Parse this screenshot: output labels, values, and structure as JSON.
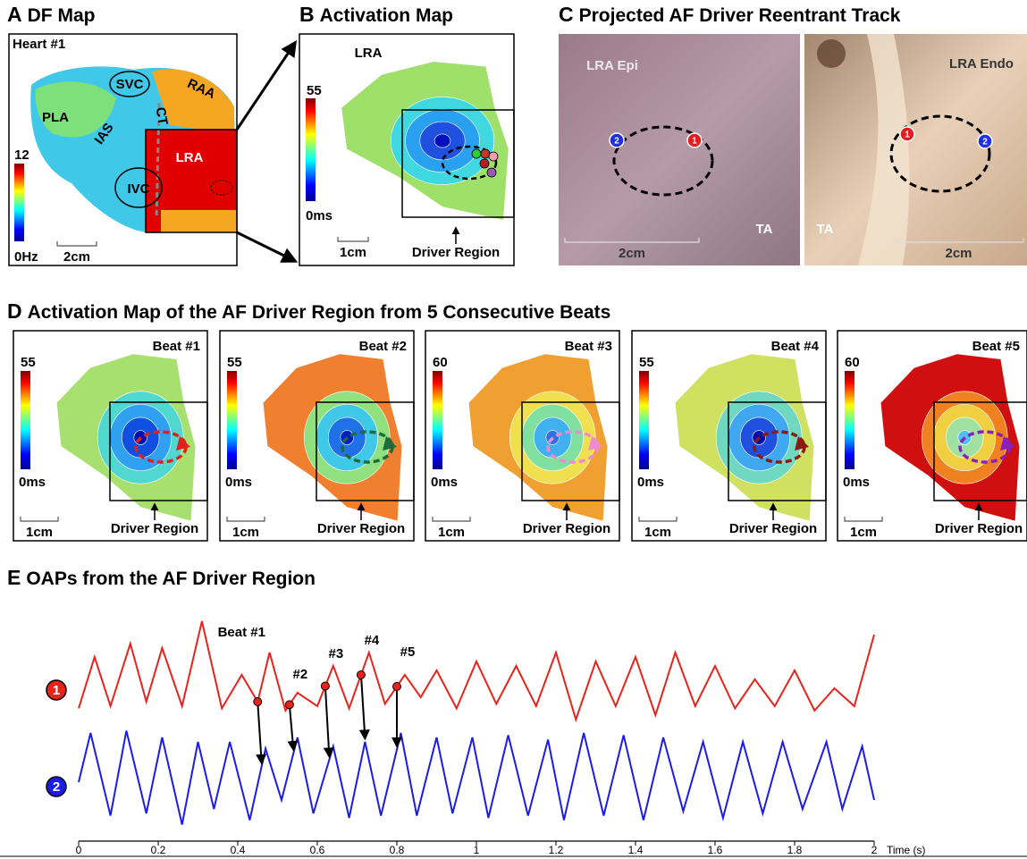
{
  "panels": {
    "A": {
      "letter": "A",
      "title": "DF Map",
      "heart": "Heart #1",
      "labels": {
        "svc": "SVC",
        "raa": "RAA",
        "pla": "PLA",
        "ias": "IAS",
        "ct": "CT",
        "lra": "LRA",
        "ivc": "IVC"
      },
      "scale_max": "12",
      "scale_min": "0Hz",
      "scalebar": "2cm"
    },
    "B": {
      "letter": "B",
      "title": "Activation Map",
      "region": "LRA",
      "scale_max": "55",
      "scale_min": "0ms",
      "scalebar": "1cm",
      "driver": "Driver Region"
    },
    "C": {
      "letter": "C",
      "title": "Projected AF Driver Reentrant Track",
      "epi": "LRA Epi",
      "endo": "LRA Endo",
      "ta_epi": "TA",
      "ta_endo": "TA",
      "scalebar_epi": "2cm",
      "scalebar_endo": "2cm",
      "point1": "1",
      "point2": "2"
    },
    "D": {
      "letter": "D",
      "title": "Activation Map of the AF Driver Region from 5 Consecutive Beats",
      "beats": [
        {
          "label": "Beat #1",
          "scale_max": "55",
          "scale_min": "0ms",
          "scalebar": "1cm",
          "driver": "Driver Region",
          "track_color": "#e0201a"
        },
        {
          "label": "Beat #2",
          "scale_max": "55",
          "scale_min": "0ms",
          "scalebar": "1cm",
          "driver": "Driver Region",
          "track_color": "#1f6b3a"
        },
        {
          "label": "Beat #3",
          "scale_max": "60",
          "scale_min": "0ms",
          "scalebar": "1cm",
          "driver": "Driver Region",
          "track_color": "#f08ad0"
        },
        {
          "label": "Beat #4",
          "scale_max": "55",
          "scale_min": "0ms",
          "scalebar": "1cm",
          "driver": "Driver Region",
          "track_color": "#8b1a10"
        },
        {
          "label": "Beat #5",
          "scale_max": "60",
          "scale_min": "0ms",
          "scalebar": "1cm",
          "driver": "Driver Region",
          "track_color": "#8a1fc0"
        }
      ]
    },
    "E": {
      "letter": "E",
      "title": "OAPs from the AF Driver Region",
      "xlabel": "Time (s)",
      "xlim": [
        0,
        2
      ],
      "xticks": [
        0,
        0.2,
        0.4,
        0.6,
        0.8,
        1,
        1.2,
        1.4,
        1.6,
        1.8,
        2
      ],
      "traces": [
        {
          "name": "1",
          "color": "#e8231c",
          "x": [
            0,
            0.04,
            0.08,
            0.13,
            0.17,
            0.21,
            0.26,
            0.31,
            0.36,
            0.41,
            0.45,
            0.48,
            0.52,
            0.55,
            0.6,
            0.64,
            0.68,
            0.73,
            0.77,
            0.82,
            0.86,
            0.9,
            0.95,
            1.0,
            1.05,
            1.1,
            1.15,
            1.2,
            1.25,
            1.3,
            1.35,
            1.4,
            1.45,
            1.5,
            1.55,
            1.6,
            1.65,
            1.7,
            1.75,
            1.8,
            1.85,
            1.9,
            1.95,
            2.0
          ],
          "y": [
            0.55,
            0.78,
            0.56,
            0.84,
            0.58,
            0.82,
            0.56,
            0.94,
            0.55,
            0.7,
            0.58,
            0.8,
            0.54,
            0.62,
            0.56,
            0.74,
            0.55,
            0.8,
            0.57,
            0.7,
            0.6,
            0.72,
            0.55,
            0.76,
            0.57,
            0.74,
            0.56,
            0.8,
            0.5,
            0.76,
            0.56,
            0.78,
            0.52,
            0.8,
            0.56,
            0.74,
            0.55,
            0.68,
            0.56,
            0.72,
            0.54,
            0.64,
            0.56,
            0.88
          ]
        },
        {
          "name": "2",
          "color": "#1c1ce8",
          "x": [
            0,
            0.03,
            0.08,
            0.12,
            0.17,
            0.21,
            0.26,
            0.3,
            0.34,
            0.38,
            0.43,
            0.47,
            0.51,
            0.55,
            0.59,
            0.64,
            0.68,
            0.72,
            0.76,
            0.81,
            0.85,
            0.9,
            0.94,
            0.99,
            1.03,
            1.08,
            1.13,
            1.18,
            1.22,
            1.27,
            1.32,
            1.37,
            1.42,
            1.47,
            1.52,
            1.57,
            1.62,
            1.67,
            1.72,
            1.77,
            1.82,
            1.88,
            1.92,
            1.97,
            2.0
          ],
          "y": [
            0.22,
            0.44,
            0.07,
            0.45,
            0.08,
            0.42,
            0.03,
            0.4,
            0.1,
            0.4,
            0.05,
            0.37,
            0.14,
            0.42,
            0.08,
            0.38,
            0.06,
            0.4,
            0.07,
            0.44,
            0.07,
            0.42,
            0.08,
            0.42,
            0.06,
            0.43,
            0.07,
            0.41,
            0.05,
            0.44,
            0.07,
            0.43,
            0.05,
            0.42,
            0.09,
            0.4,
            0.06,
            0.4,
            0.08,
            0.4,
            0.1,
            0.4,
            0.1,
            0.38,
            0.14
          ]
        }
      ],
      "beats": [
        {
          "label": "Beat #1",
          "t_red": 0.45,
          "t_blue": 0.46
        },
        {
          "label": "#2",
          "t_red": 0.53,
          "t_blue": 0.54
        },
        {
          "label": "#3",
          "t_red": 0.62,
          "t_blue": 0.63
        },
        {
          "label": "#4",
          "t_red": 0.71,
          "t_blue": 0.72
        },
        {
          "label": "#5",
          "t_red": 0.8,
          "t_blue": 0.8
        }
      ]
    }
  }
}
